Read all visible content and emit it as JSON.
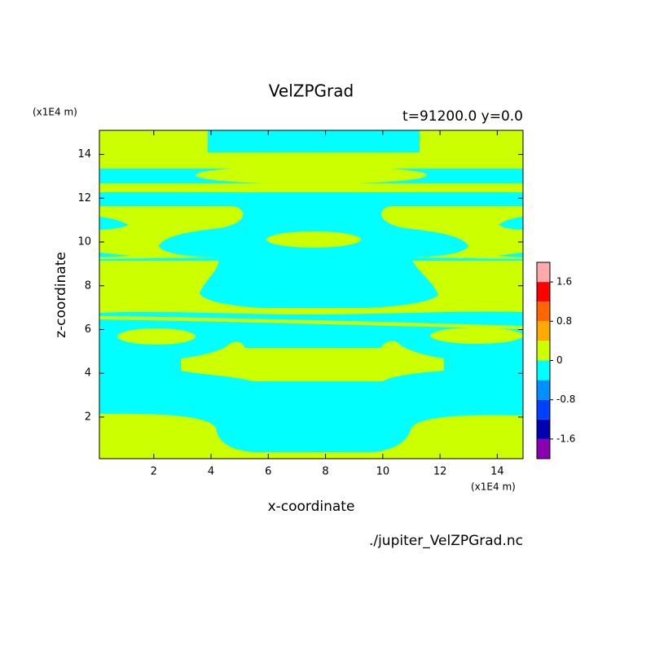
{
  "chart_data": {
    "type": "contour",
    "title": "VelZPGrad",
    "subtitle": "t=91200.0 y=0.0",
    "x_label": "x-coordinate",
    "y_label": "z-coordinate",
    "x_unit": "(x1E4 m)",
    "y_unit": "(x1E4 m)",
    "footnote": "./jupiter_VelZPGrad.nc",
    "xlim": [
      0.1,
      14.9
    ],
    "ylim": [
      0.1,
      15.1
    ],
    "xticks": [
      2,
      4,
      6,
      8,
      10,
      12,
      14
    ],
    "yticks": [
      2,
      4,
      6,
      8,
      10,
      12,
      14
    ],
    "colorbar": {
      "levels": [
        -2,
        -1.6,
        -1.2,
        -0.8,
        -0.4,
        0,
        0.4,
        0.8,
        1.2,
        1.6,
        2
      ],
      "colors": [
        "#8a00b0",
        "#0000b0",
        "#0040ff",
        "#0090ff",
        "#00ffff",
        "#ccff00",
        "#ffaa00",
        "#ff6600",
        "#ff0000",
        "#ffaaaa"
      ],
      "ticks": [
        -1.6,
        -0.8,
        0,
        0.8,
        1.6
      ]
    }
  }
}
